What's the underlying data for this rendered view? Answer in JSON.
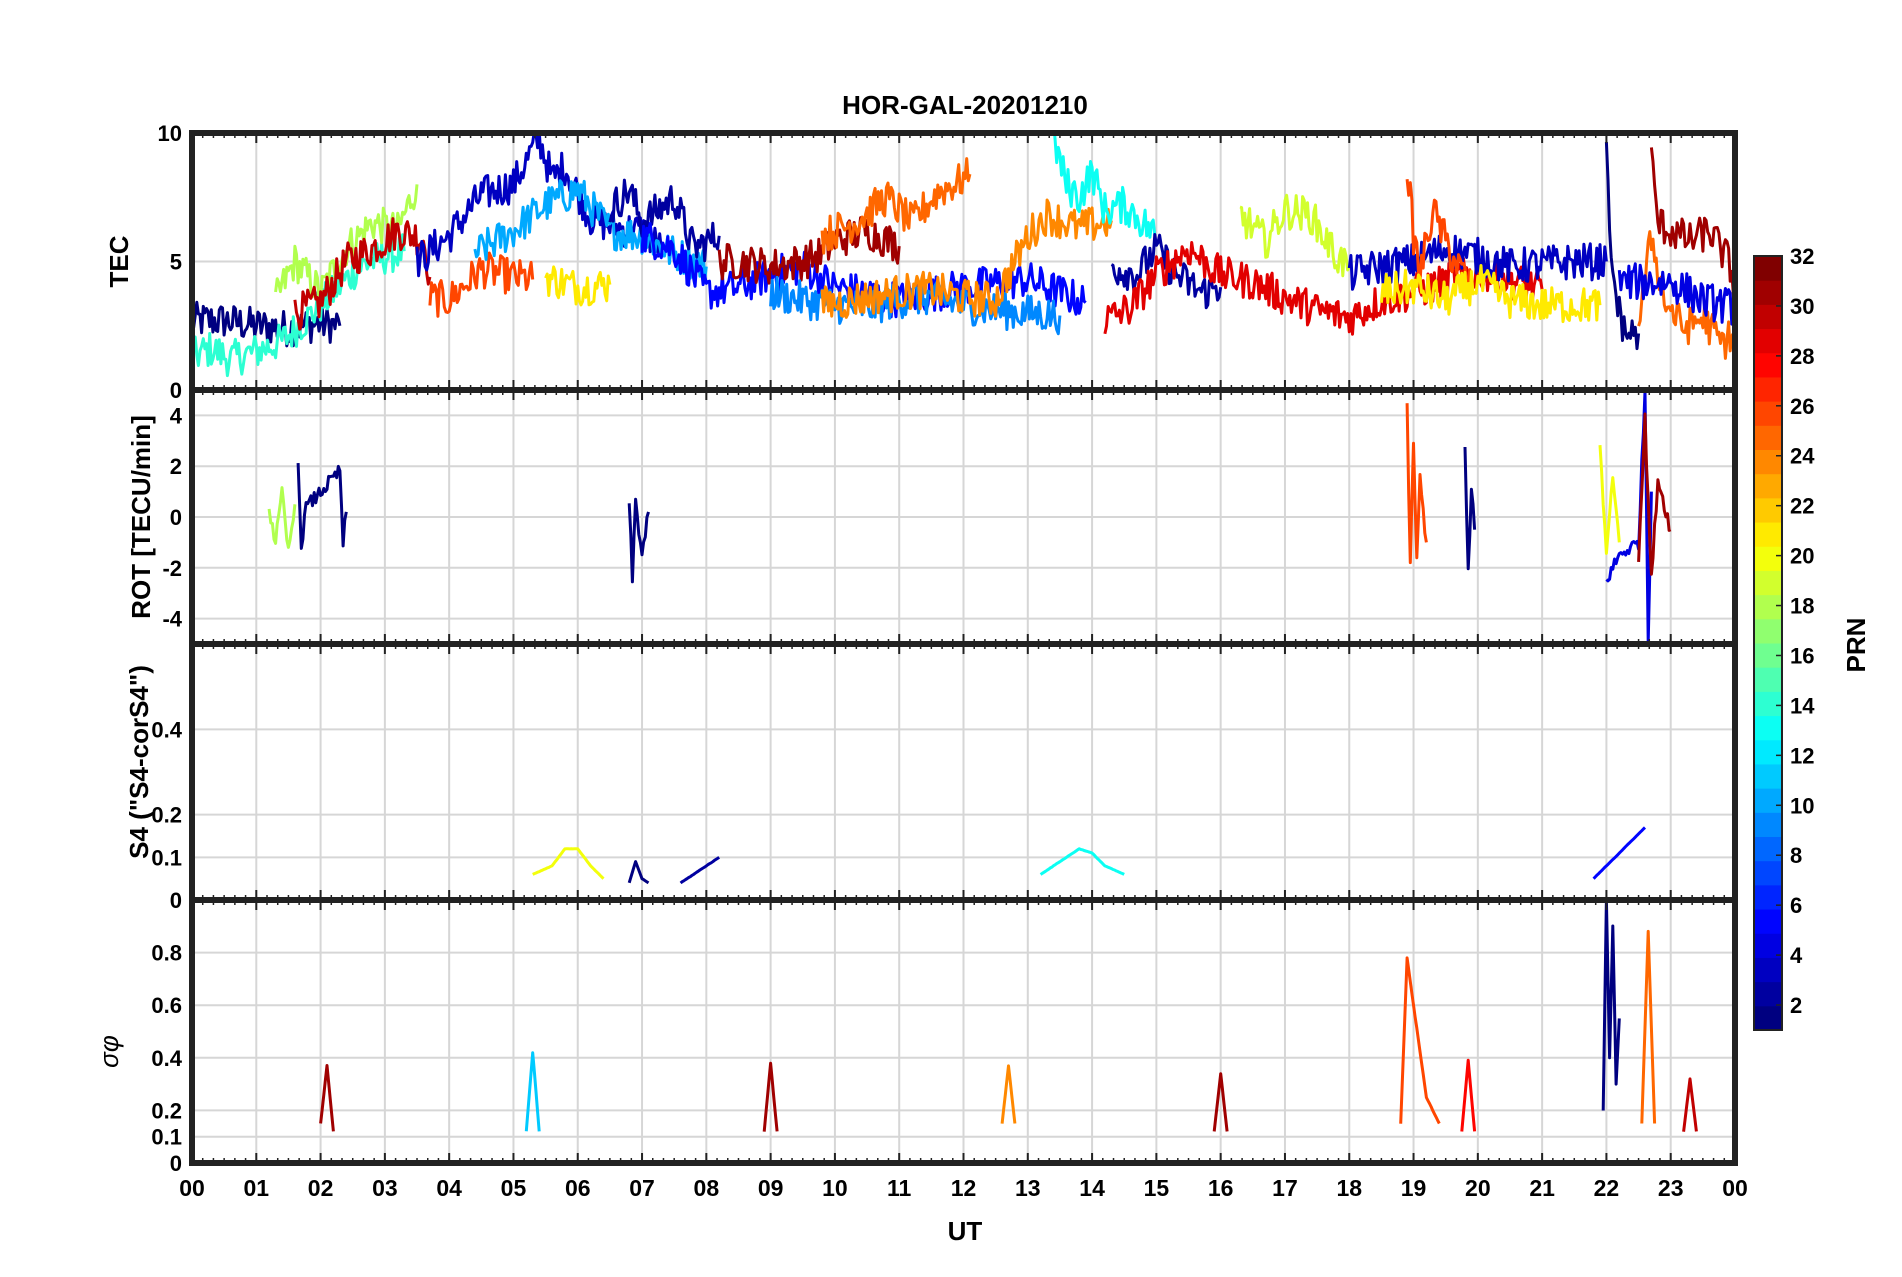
{
  "chart_data": {
    "type": "line",
    "title": "HOR-GAL-20201210",
    "xlabel": "UT",
    "x_ticks": [
      "00",
      "01",
      "02",
      "03",
      "04",
      "05",
      "06",
      "07",
      "08",
      "09",
      "10",
      "11",
      "12",
      "13",
      "14",
      "15",
      "16",
      "17",
      "18",
      "19",
      "20",
      "21",
      "22",
      "23",
      "00"
    ],
    "xlim": [
      0,
      24
    ],
    "grid": true,
    "colorbar": {
      "label": "PRN",
      "range": [
        1,
        32
      ],
      "ticks": [
        "2",
        "4",
        "6",
        "8",
        "10",
        "12",
        "14",
        "16",
        "18",
        "20",
        "22",
        "24",
        "26",
        "28",
        "30",
        "32"
      ],
      "colormap": "jet"
    },
    "panels": [
      {
        "ylabel": "TEC",
        "ylim": [
          0,
          10
        ],
        "y_ticks": [
          "0",
          "5",
          "10"
        ],
        "series": [
          {
            "prn": 1,
            "x": [
              0,
              0.5,
              1,
              1.5,
              2,
              2.3
            ],
            "y": [
              2.7,
              2.7,
              2.5,
              2.4,
              2.6,
              2.5
            ]
          },
          {
            "prn": 14,
            "x": [
              0,
              0.3,
              0.6,
              1,
              1.4,
              1.8,
              2.2,
              2.6,
              3,
              3.3
            ],
            "y": [
              1.3,
              1.6,
              1.2,
              1.5,
              1.9,
              2.8,
              3.8,
              4.8,
              5.2,
              5.4
            ]
          },
          {
            "prn": 18,
            "x": [
              1.3,
              1.6,
              2,
              2.4,
              2.8,
              3.2,
              3.5
            ],
            "y": [
              3.5,
              5,
              3.8,
              5.5,
              6.5,
              6.2,
              8
            ]
          },
          {
            "prn": 30,
            "x": [
              1.6,
              2,
              2.4,
              2.8,
              3.2,
              3.6,
              3.7
            ],
            "y": [
              3,
              3.4,
              5,
              5.5,
              6.2,
              5.9,
              4.4
            ]
          },
          {
            "prn": 3,
            "x": [
              3.5,
              4,
              4.5,
              5,
              5.4,
              5.6,
              5.8,
              6.2,
              6.6,
              7,
              7.3
            ],
            "y": [
              5,
              6,
              7.6,
              8,
              9.8,
              8.2,
              8.7,
              6.7,
              6.3,
              6.2,
              5.5
            ]
          },
          {
            "prn": 26,
            "x": [
              3.7,
              4,
              4.5,
              5,
              5.3
            ],
            "y": [
              3.6,
              3.5,
              4.7,
              4.4,
              4.3
            ]
          },
          {
            "prn": 10,
            "x": [
              4.4,
              5,
              5.5,
              6,
              6.5,
              7,
              7.5,
              8
            ],
            "y": [
              5.3,
              6.2,
              7.2,
              7.8,
              6.2,
              6,
              5.3,
              4.8
            ]
          },
          {
            "prn": 21,
            "x": [
              5.5,
              6,
              6.5
            ],
            "y": [
              4.4,
              4.0,
              4.1
            ]
          },
          {
            "prn": 2,
            "x": [
              6.5,
              6.8,
              7,
              7.5,
              7.8,
              8.2
            ],
            "y": [
              7,
              7.8,
              6.5,
              7.5,
              5.5,
              6
            ]
          },
          {
            "prn": 5,
            "x": [
              7,
              7.5,
              8,
              8.5,
              9,
              9.5,
              10,
              11,
              12,
              13,
              13.5,
              13.9
            ],
            "y": [
              6,
              5.5,
              3.8,
              4,
              4.5,
              4.8,
              4,
              3.5,
              4,
              4.3,
              3.8,
              3.4
            ]
          },
          {
            "prn": 31,
            "x": [
              8.2,
              8.5,
              9,
              9.5,
              9.8,
              10,
              10.5,
              11
            ],
            "y": [
              5,
              5,
              4.8,
              5,
              5.3,
              5.8,
              6.2,
              5.6
            ]
          },
          {
            "prn": 25,
            "x": [
              9.8,
              10.3,
              10.8,
              11.2,
              11.6,
              12,
              12.1
            ],
            "y": [
              6,
              6.5,
              7.5,
              6.5,
              7.7,
              8.2,
              8.4
            ]
          },
          {
            "prn": 9,
            "x": [
              9,
              9.5,
              10,
              10.5,
              11,
              11.5,
              12,
              12.5,
              13,
              13.5
            ],
            "y": [
              3.8,
              3.5,
              3.3,
              3.2,
              3.5,
              3.6,
              3.3,
              3.1,
              3,
              2.9
            ]
          },
          {
            "prn": 24,
            "x": [
              9.8,
              10.5,
              11,
              11.5,
              12,
              12.5,
              13,
              13.3,
              13.8,
              14.3
            ],
            "y": [
              3.3,
              3.6,
              3.8,
              3.9,
              3.6,
              3.5,
              6,
              6.8,
              6.3,
              6.6
            ]
          },
          {
            "prn": 13,
            "x": [
              13.4,
              13.6,
              13.8,
              14,
              14.2,
              14.5,
              14.8,
              15
            ],
            "y": [
              9.8,
              8,
              7.5,
              8.5,
              7,
              7.2,
              6.5,
              6
            ]
          },
          {
            "prn": 2,
            "x": [
              14.3,
              14.7,
              15,
              15.3,
              15.7,
              16
            ],
            "y": [
              4.8,
              4.5,
              5.5,
              4.5,
              3.8,
              4
            ]
          },
          {
            "prn": 29,
            "x": [
              14.2,
              14.6,
              15,
              15.5,
              16,
              16.5,
              17,
              17.5,
              18,
              18.5,
              19,
              19.5,
              20,
              20.5,
              21
            ],
            "y": [
              2.7,
              3.2,
              4.5,
              5.5,
              4.5,
              4.2,
              3.6,
              3.1,
              2.8,
              3.5,
              3.8,
              4.2,
              4.6,
              4.3,
              3.9
            ]
          },
          {
            "prn": 19,
            "x": [
              16.3,
              16.7,
              17,
              17.4,
              17.8,
              18
            ],
            "y": [
              6.8,
              5.8,
              7,
              6.8,
              5.2,
              4.8
            ]
          },
          {
            "prn": 3,
            "x": [
              18,
              18.5,
              19,
              19.5,
              20,
              20.5,
              21,
              21.5,
              22
            ],
            "y": [
              4.5,
              4.8,
              5,
              5.5,
              5.2,
              4.8,
              4.9,
              5,
              5
            ]
          },
          {
            "prn": 26,
            "x": [
              18.9,
              19,
              19.1,
              19.3,
              19.6,
              19.9
            ],
            "y": [
              8.8,
              6,
              4.5,
              7,
              5.2,
              4
            ]
          },
          {
            "prn": 21,
            "x": [
              18.5,
              19,
              19.5,
              20,
              20.5,
              21,
              21.5,
              21.9
            ],
            "y": [
              3.8,
              4,
              3.5,
              4.2,
              3.5,
              3.3,
              3.3,
              3.3
            ]
          },
          {
            "prn": 1,
            "x": [
              22,
              22.05,
              22.1,
              22.2,
              22.3,
              22.5
            ],
            "y": [
              9.2,
              6,
              4.5,
              3,
              2.2,
              2.2
            ]
          },
          {
            "prn": 31,
            "x": [
              22.7,
              22.8,
              23,
              23.3,
              23.6,
              23.9,
              24
            ],
            "y": [
              9,
              6.5,
              6.2,
              5.8,
              6.2,
              5,
              4
            ]
          },
          {
            "prn": 25,
            "x": [
              22.5,
              22.7,
              22.9,
              23.2,
              23.5,
              23.8,
              24
            ],
            "y": [
              2.5,
              6,
              3.5,
              2.4,
              2.8,
              1.8,
              2.3
            ]
          },
          {
            "prn": 4,
            "x": [
              22.2,
              22.7,
              23,
              23.5,
              24
            ],
            "y": [
              4.2,
              4.2,
              4.2,
              3.5,
              3.2
            ]
          }
        ]
      },
      {
        "ylabel": "ROT [TECU/min]",
        "ylim": [
          -5,
          5
        ],
        "y_ticks": [
          "-4",
          "-2",
          "0",
          "2",
          "4"
        ],
        "series": [
          {
            "prn": 18,
            "x": [
              1.2,
              1.3,
              1.4,
              1.5,
              1.6
            ],
            "y": [
              0.3,
              -1,
              0.9,
              -1.4,
              0.5
            ]
          },
          {
            "prn": 1,
            "x": [
              1.65,
              1.7,
              1.75,
              2.3,
              2.35,
              2.4
            ],
            "y": [
              2.4,
              -1.5,
              0.3,
              1.8,
              -1,
              0.2
            ]
          },
          {
            "prn": 1,
            "x": [
              6.8,
              6.85,
              6.9,
              7,
              7.1
            ],
            "y": [
              0.5,
              -2.4,
              0.6,
              -1.5,
              0.2
            ]
          },
          {
            "prn": 26,
            "x": [
              18.9,
              18.95,
              19,
              19.05,
              19.1,
              19.2
            ],
            "y": [
              4.2,
              -2,
              3,
              -1.8,
              1.5,
              -1
            ]
          },
          {
            "prn": 1,
            "x": [
              19.8,
              19.85,
              19.9,
              19.95
            ],
            "y": [
              2.6,
              -2,
              1,
              -0.5
            ]
          },
          {
            "prn": 20,
            "x": [
              21.9,
              22,
              22.1,
              22.2
            ],
            "y": [
              2.8,
              -1.5,
              1.5,
              -1
            ]
          },
          {
            "prn": 4,
            "x": [
              22,
              22.2,
              22.5,
              22.6,
              22.65,
              22.7
            ],
            "y": [
              -2.5,
              -1.5,
              -1,
              5,
              -4.8,
              1
            ]
          },
          {
            "prn": 31,
            "x": [
              22.5,
              22.6,
              22.7,
              22.8,
              23
            ],
            "y": [
              -1.5,
              3.8,
              -2.5,
              1.5,
              -0.5
            ]
          }
        ]
      },
      {
        "ylabel": "S4 (\"S4-corS4\")",
        "ylim": [
          0,
          0.6
        ],
        "y_ticks": [
          "0",
          "0.1",
          "0.2",
          "0.4"
        ],
        "series": [
          {
            "prn": 20,
            "x": [
              5.3,
              5.6,
              5.8,
              6,
              6.2,
              6.4
            ],
            "y": [
              0.06,
              0.08,
              0.12,
              0.12,
              0.08,
              0.05
            ]
          },
          {
            "prn": 1,
            "x": [
              6.8,
              6.9,
              7,
              7.1
            ],
            "y": [
              0.04,
              0.09,
              0.05,
              0.04
            ]
          },
          {
            "prn": 2,
            "x": [
              7.6,
              7.8,
              8,
              8.2
            ],
            "y": [
              0.04,
              0.06,
              0.08,
              0.1
            ]
          },
          {
            "prn": 13,
            "x": [
              13.2,
              13.5,
              13.8,
              14,
              14.2,
              14.5
            ],
            "y": [
              0.06,
              0.09,
              0.12,
              0.11,
              0.08,
              0.06
            ]
          },
          {
            "prn": 5,
            "x": [
              21.8,
              22,
              22.2,
              22.4,
              22.6
            ],
            "y": [
              0.05,
              0.08,
              0.11,
              0.14,
              0.17
            ]
          }
        ]
      },
      {
        "ylabel": "σφ",
        "ylim": [
          0,
          1
        ],
        "y_ticks": [
          "0",
          "0.1",
          "0.2",
          "0.4",
          "0.6",
          "0.8"
        ],
        "series": [
          {
            "prn": 31,
            "x": [
              2,
              2.1,
              2.2
            ],
            "y": [
              0.15,
              0.37,
              0.12
            ]
          },
          {
            "prn": 11,
            "x": [
              5.2,
              5.3,
              5.4
            ],
            "y": [
              0.12,
              0.42,
              0.12
            ]
          },
          {
            "prn": 31,
            "x": [
              8.9,
              9,
              9.1
            ],
            "y": [
              0.12,
              0.38,
              0.12
            ]
          },
          {
            "prn": 24,
            "x": [
              12.6,
              12.7,
              12.8
            ],
            "y": [
              0.15,
              0.37,
              0.15
            ]
          },
          {
            "prn": 31,
            "x": [
              15.9,
              16,
              16.1
            ],
            "y": [
              0.12,
              0.34,
              0.12
            ]
          },
          {
            "prn": 26,
            "x": [
              18.8,
              18.9,
              19,
              19.2,
              19.4
            ],
            "y": [
              0.15,
              0.78,
              0.6,
              0.25,
              0.15
            ]
          },
          {
            "prn": 28,
            "x": [
              19.75,
              19.85,
              19.95
            ],
            "y": [
              0.12,
              0.39,
              0.12
            ]
          },
          {
            "prn": 1,
            "x": [
              21.95,
              22,
              22.05,
              22.1,
              22.15,
              22.2
            ],
            "y": [
              0.2,
              1.0,
              0.4,
              0.9,
              0.3,
              0.55
            ]
          },
          {
            "prn": 25,
            "x": [
              22.55,
              22.65,
              22.75
            ],
            "y": [
              0.15,
              0.88,
              0.15
            ]
          },
          {
            "prn": 30,
            "x": [
              23.2,
              23.3,
              23.4
            ],
            "y": [
              0.12,
              0.32,
              0.12
            ]
          }
        ]
      }
    ]
  }
}
